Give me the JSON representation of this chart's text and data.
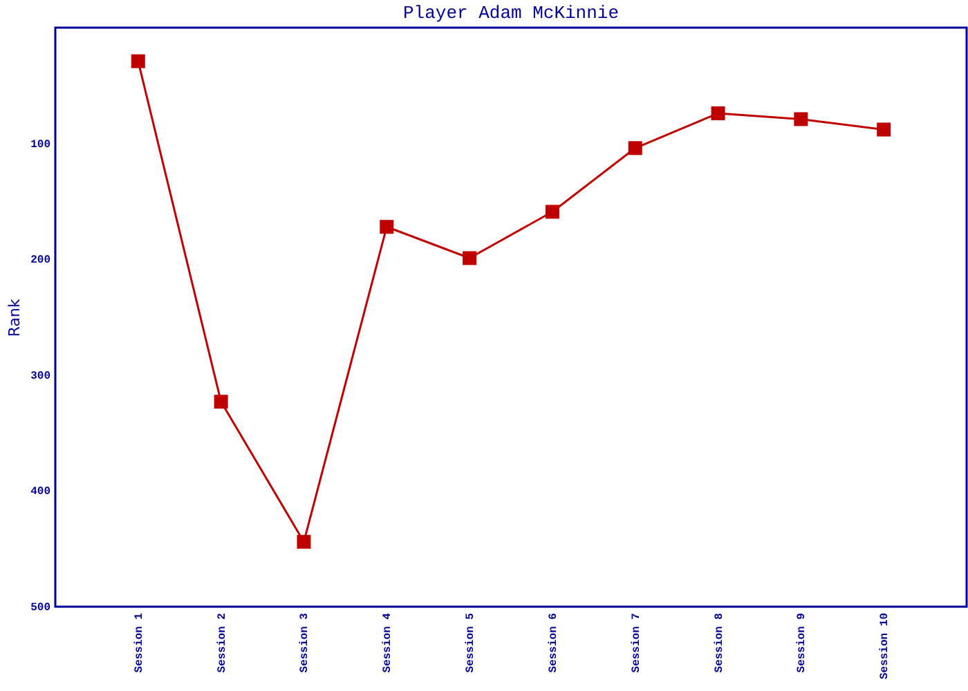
{
  "chart_data": {
    "type": "line",
    "title": "Player Adam McKinnie",
    "ylabel": "Rank",
    "categories": [
      "Session 1",
      "Session 2",
      "Session 3",
      "Session 4",
      "Session 5",
      "Session 6",
      "Session 7",
      "Session 8",
      "Session 9",
      "Session 10"
    ],
    "series": [
      {
        "color": "#c00000",
        "values": [
          29,
          323,
          444,
          172,
          199,
          159,
          104,
          74,
          79,
          88
        ]
      }
    ],
    "ylim": [
      500,
      0
    ],
    "yticks": [
      100,
      200,
      300,
      400,
      500
    ],
    "marker": "square",
    "grid": false,
    "legend": false
  }
}
